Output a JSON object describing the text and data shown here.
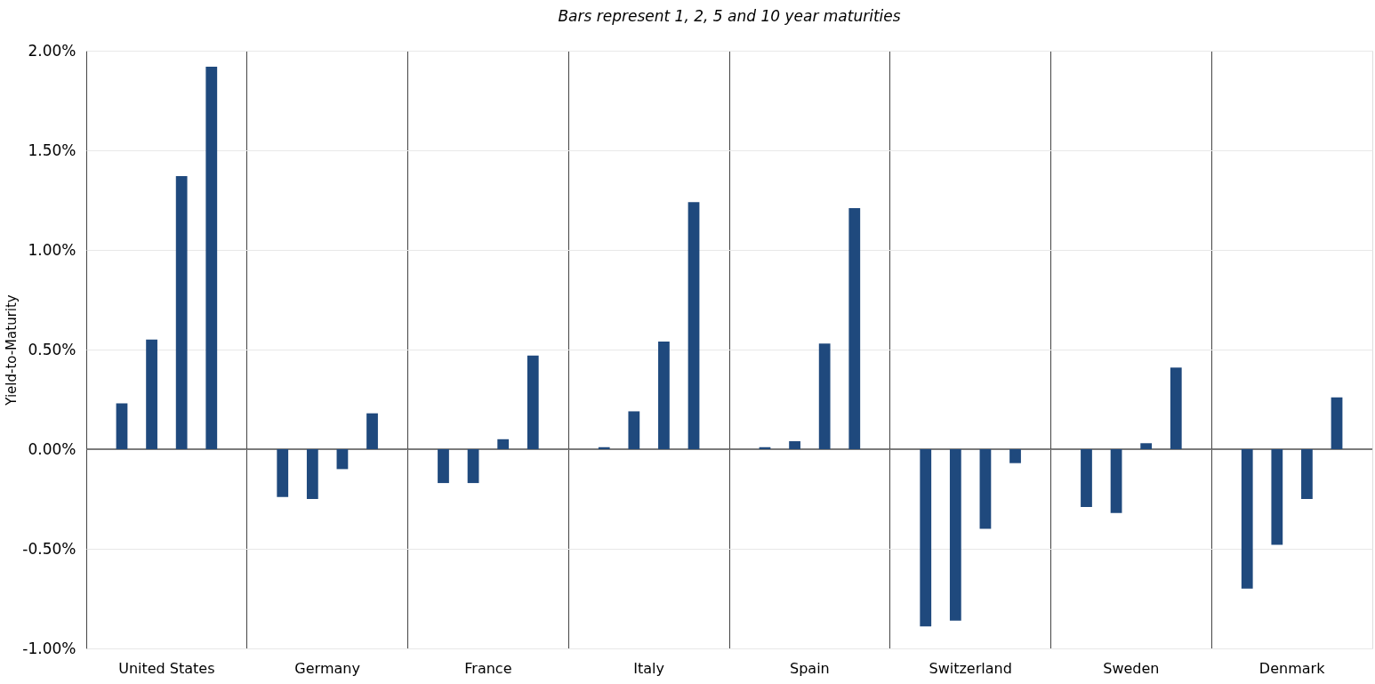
{
  "chart_data": {
    "type": "bar",
    "title": "Bars represent 1, 2, 5 and 10 year maturities",
    "ylabel": "Yield-to-Maturity",
    "categories": [
      "United States",
      "Germany",
      "France",
      "Italy",
      "Spain",
      "Switzerland",
      "Sweden",
      "Denmark"
    ],
    "series": [
      {
        "color": "#1f497d",
        "values": [
          0.23,
          -0.24,
          -0.17,
          0.01,
          0.01,
          -0.89,
          -0.29,
          -0.7
        ]
      },
      {
        "color": "#1f497d",
        "values": [
          0.55,
          -0.25,
          -0.17,
          0.19,
          0.04,
          -0.86,
          -0.32,
          -0.48
        ]
      },
      {
        "color": "#1f497d",
        "values": [
          1.37,
          -0.1,
          0.05,
          0.54,
          0.53,
          -0.4,
          0.03,
          -0.25
        ]
      },
      {
        "color": "#1f497d",
        "values": [
          1.92,
          0.18,
          0.47,
          1.24,
          1.21,
          -0.07,
          0.41,
          0.26
        ]
      }
    ],
    "ylim": [
      -1,
      2
    ],
    "yticks": [
      {
        "value": -1,
        "label": "-1.00%"
      },
      {
        "value": -0.5,
        "label": "-0.50%"
      },
      {
        "value": 0,
        "label": "0.00%"
      },
      {
        "value": 0.5,
        "label": "0.50%"
      },
      {
        "value": 1,
        "label": "1.00%"
      },
      {
        "value": 1.5,
        "label": "1.50%"
      },
      {
        "value": 2,
        "label": "2.00%"
      }
    ],
    "ref_lines": [
      {
        "axis": "y",
        "value": 0,
        "color": "#555555"
      }
    ],
    "grid": true,
    "legend": false
  }
}
